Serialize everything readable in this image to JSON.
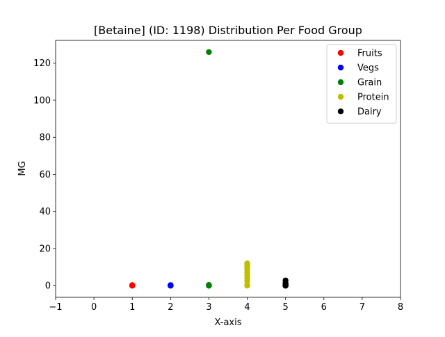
{
  "chart_data": {
    "type": "scatter",
    "title": "[Betaine] (ID: 1198) Distribution Per Food Group",
    "xlabel": "X-axis",
    "ylabel": "MG",
    "xlim": [
      -1,
      8
    ],
    "ylim": [
      -6.3,
      132.3
    ],
    "xticks": [
      -1,
      0,
      1,
      2,
      3,
      4,
      5,
      6,
      7,
      8
    ],
    "yticks": [
      0,
      20,
      40,
      60,
      80,
      100,
      120
    ],
    "grid": false,
    "legend_position": "top-right",
    "series": [
      {
        "name": "Fruits",
        "color": "#ff0000",
        "x": [
          1,
          1,
          1,
          1,
          1,
          1
        ],
        "y": [
          0,
          0,
          0.1,
          0.1,
          0.2,
          0.3
        ]
      },
      {
        "name": "Vegs",
        "color": "#0000ff",
        "x": [
          2,
          2,
          2,
          2,
          2,
          2
        ],
        "y": [
          0,
          0,
          0.1,
          0.1,
          0.2,
          0.3
        ]
      },
      {
        "name": "Grain",
        "color": "#008000",
        "x": [
          3,
          3,
          3,
          3,
          3,
          3
        ],
        "y": [
          0,
          0,
          0.1,
          0.2,
          0.4,
          126
        ]
      },
      {
        "name": "Protein",
        "color": "#bfbf00",
        "x": [
          4,
          4,
          4,
          4,
          4,
          4,
          4,
          4,
          4,
          4,
          4,
          4
        ],
        "y": [
          0,
          0.2,
          0.5,
          2.5,
          4,
          5.5,
          7,
          8.5,
          9.5,
          10.5,
          11.5,
          12
        ]
      },
      {
        "name": "Dairy",
        "color": "#000000",
        "x": [
          5,
          5,
          5,
          5,
          5,
          5,
          5,
          5
        ],
        "y": [
          0,
          0,
          0.1,
          0.3,
          0.6,
          1,
          1.5,
          2.8
        ]
      }
    ]
  }
}
